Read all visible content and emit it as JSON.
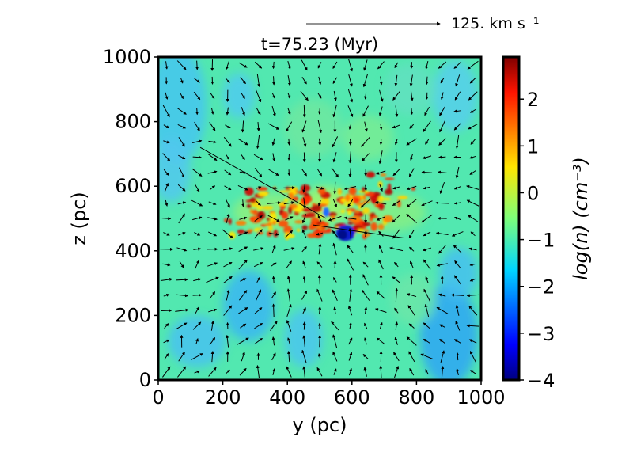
{
  "chart_data": {
    "type": "heatmap",
    "title": "t=75.23 (Myr)",
    "xlabel": "y (pc)",
    "ylabel": "z (pc)",
    "xlim": [
      0,
      1000
    ],
    "ylim": [
      0,
      1000
    ],
    "xticks": [
      "0",
      "200",
      "400",
      "600",
      "800",
      "1000"
    ],
    "yticks": [
      "0",
      "200",
      "400",
      "600",
      "800",
      "1000"
    ],
    "colorbar": {
      "label": "log(n) (cm⁻³)",
      "range": [
        -4,
        2.9
      ],
      "ticks": [
        "−4",
        "−3",
        "−2",
        "−1",
        "0",
        "1",
        "2"
      ],
      "colormap": "jet"
    },
    "quiver_key": {
      "label": "125. km s⁻¹",
      "value_kms": 125
    },
    "background_level": -1.1,
    "features": [
      {
        "name": "dense filamentary midplane gas",
        "y_range": [
          200,
          800
        ],
        "z_range": [
          430,
          600
        ],
        "log_n_max": 2.5
      },
      {
        "name": "low-density bubble",
        "y_center": 580,
        "z_center": 455,
        "log_n_min": -3.5
      },
      {
        "name": "diffuse low-density regions",
        "y": [
          100,
          300,
          900
        ],
        "z": [
          820,
          250,
          150
        ],
        "log_n": -1.8
      }
    ],
    "lines": [
      {
        "from": [
          130,
          720
        ],
        "to": [
          520,
          500
        ]
      },
      {
        "from": [
          480,
          480
        ],
        "to": [
          760,
          440
        ]
      }
    ],
    "grid": false,
    "legend": "none"
  }
}
